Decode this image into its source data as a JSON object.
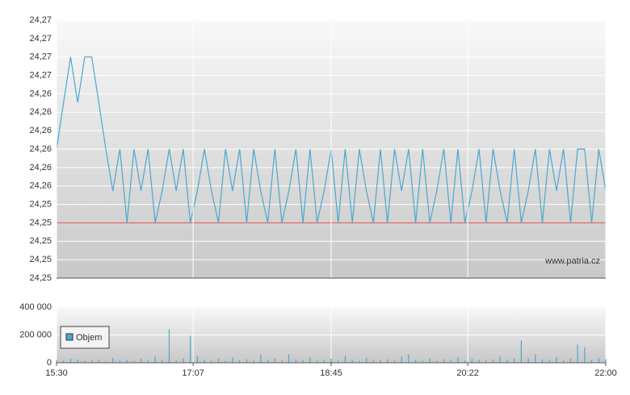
{
  "chart_data": [
    {
      "type": "line",
      "color": "#4aa8d0",
      "watermark": "www.patria.cz",
      "ref_line": {
        "value": 24.253,
        "color": "#e06060"
      },
      "xlim": [
        "15:30",
        "22:00"
      ],
      "ylim": [
        24.2485,
        24.2695
      ],
      "yticks": [
        {
          "value": 24.2485,
          "label": "24,25"
        },
        {
          "value": 24.25,
          "label": "24,25"
        },
        {
          "value": 24.2515,
          "label": "24,25"
        },
        {
          "value": 24.253,
          "label": "24,25"
        },
        {
          "value": 24.2545,
          "label": "24,25"
        },
        {
          "value": 24.256,
          "label": "24,26"
        },
        {
          "value": 24.2575,
          "label": "24,26"
        },
        {
          "value": 24.259,
          "label": "24,26"
        },
        {
          "value": 24.2605,
          "label": "24,26"
        },
        {
          "value": 24.262,
          "label": "24,26"
        },
        {
          "value": 24.2635,
          "label": "24,26"
        },
        {
          "value": 24.265,
          "label": "24,27"
        },
        {
          "value": 24.2665,
          "label": "24,27"
        },
        {
          "value": 24.268,
          "label": "24,27"
        },
        {
          "value": 24.2695,
          "label": "24,27"
        }
      ],
      "grid": true,
      "x": [
        "15:30",
        "15:35",
        "15:40",
        "15:45",
        "15:50",
        "15:55",
        "16:00",
        "16:05",
        "16:10",
        "16:15",
        "16:20",
        "16:25",
        "16:30",
        "16:35",
        "16:40",
        "16:45",
        "16:50",
        "16:55",
        "17:00",
        "17:05",
        "17:10",
        "17:15",
        "17:20",
        "17:25",
        "17:30",
        "17:35",
        "17:40",
        "17:45",
        "17:50",
        "17:55",
        "18:00",
        "18:05",
        "18:10",
        "18:15",
        "18:20",
        "18:25",
        "18:30",
        "18:35",
        "18:40",
        "18:45",
        "18:50",
        "18:55",
        "19:00",
        "19:05",
        "19:10",
        "19:15",
        "19:20",
        "19:25",
        "19:30",
        "19:35",
        "19:40",
        "19:45",
        "19:50",
        "19:55",
        "20:00",
        "20:05",
        "20:10",
        "20:15",
        "20:20",
        "20:25",
        "20:30",
        "20:35",
        "20:40",
        "20:45",
        "20:50",
        "20:55",
        "21:00",
        "21:05",
        "21:10",
        "21:15",
        "21:20",
        "21:25",
        "21:30",
        "21:35",
        "21:40",
        "21:45",
        "21:50",
        "21:55",
        "22:00"
      ],
      "values": [
        24.259,
        24.2628,
        24.2665,
        24.2628,
        24.2665,
        24.2665,
        24.2628,
        24.259,
        24.2556,
        24.259,
        24.253,
        24.259,
        24.2556,
        24.259,
        24.253,
        24.2556,
        24.259,
        24.2556,
        24.259,
        24.253,
        24.2556,
        24.259,
        24.2556,
        24.253,
        24.259,
        24.2556,
        24.259,
        24.253,
        24.259,
        24.2556,
        24.253,
        24.259,
        24.253,
        24.2556,
        24.259,
        24.253,
        24.259,
        24.253,
        24.2556,
        24.259,
        24.253,
        24.259,
        24.253,
        24.259,
        24.2556,
        24.253,
        24.259,
        24.253,
        24.259,
        24.2556,
        24.259,
        24.253,
        24.259,
        24.253,
        24.2556,
        24.259,
        24.253,
        24.259,
        24.253,
        24.2556,
        24.259,
        24.253,
        24.259,
        24.2556,
        24.253,
        24.259,
        24.253,
        24.2556,
        24.259,
        24.253,
        24.259,
        24.2556,
        24.259,
        24.253,
        24.259,
        24.259,
        24.253,
        24.259,
        24.2556
      ]
    },
    {
      "type": "bar",
      "xlim": [
        "15:30",
        "22:00"
      ],
      "xticks": [
        "15:30",
        "17:07",
        "18:45",
        "20:22",
        "22:00"
      ],
      "ylim": [
        0,
        400000
      ],
      "yticks": [
        0,
        {
          "value": 200000,
          "label": "200 000"
        },
        {
          "value": 400000,
          "label": "400 000"
        }
      ],
      "grid": true,
      "x": [
        "15:30",
        "15:35",
        "15:40",
        "15:45",
        "15:50",
        "15:55",
        "16:00",
        "16:05",
        "16:10",
        "16:15",
        "16:20",
        "16:25",
        "16:30",
        "16:35",
        "16:40",
        "16:45",
        "16:50",
        "16:55",
        "17:00",
        "17:05",
        "17:10",
        "17:15",
        "17:20",
        "17:25",
        "17:30",
        "17:35",
        "17:40",
        "17:45",
        "17:50",
        "17:55",
        "18:00",
        "18:05",
        "18:10",
        "18:15",
        "18:20",
        "18:25",
        "18:30",
        "18:35",
        "18:40",
        "18:45",
        "18:50",
        "18:55",
        "19:00",
        "19:05",
        "19:10",
        "19:15",
        "19:20",
        "19:25",
        "19:30",
        "19:35",
        "19:40",
        "19:45",
        "19:50",
        "19:55",
        "20:00",
        "20:05",
        "20:10",
        "20:15",
        "20:20",
        "20:25",
        "20:30",
        "20:35",
        "20:40",
        "20:45",
        "20:50",
        "20:55",
        "21:00",
        "21:05",
        "21:10",
        "21:15",
        "21:20",
        "21:25",
        "21:30",
        "21:35",
        "21:40",
        "21:45",
        "21:50",
        "21:55",
        "22:00"
      ],
      "series": [
        {
          "name": "Objem",
          "color": "#4aa8d0",
          "values": [
            20000,
            15000,
            30000,
            25000,
            12000,
            18000,
            22000,
            10000,
            35000,
            15000,
            20000,
            12000,
            28000,
            15000,
            45000,
            20000,
            240000,
            15000,
            30000,
            195000,
            50000,
            20000,
            15000,
            30000,
            12000,
            40000,
            18000,
            25000,
            15000,
            60000,
            20000,
            30000,
            15000,
            60000,
            25000,
            18000,
            40000,
            15000,
            22000,
            30000,
            15000,
            50000,
            20000,
            12000,
            35000,
            20000,
            18000,
            25000,
            15000,
            45000,
            60000,
            20000,
            15000,
            30000,
            12000,
            25000,
            20000,
            40000,
            15000,
            30000,
            20000,
            15000,
            25000,
            45000,
            20000,
            30000,
            160000,
            30000,
            60000,
            25000,
            20000,
            40000,
            15000,
            30000,
            130000,
            110000,
            20000,
            35000,
            25000
          ]
        }
      ]
    }
  ]
}
